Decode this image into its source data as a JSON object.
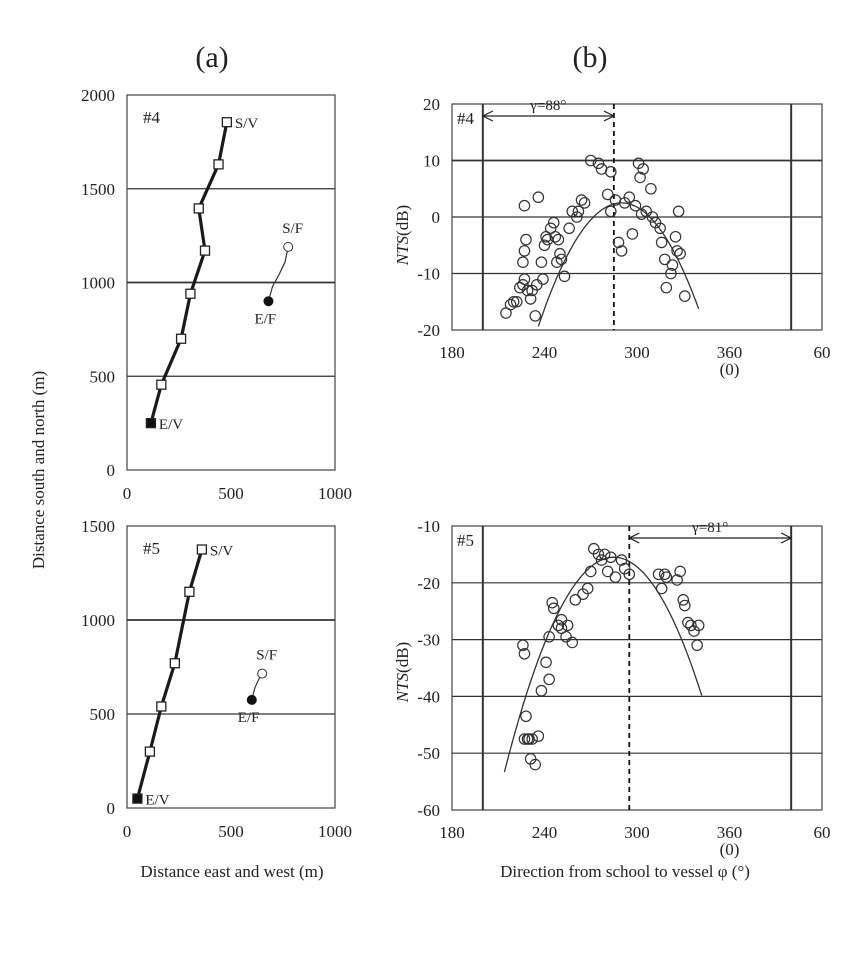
{
  "figure": {
    "panel_a_label": "(a)",
    "panel_b_label": "(b)",
    "a_ylabel": "Distance south and north (m)",
    "a_xlabel": "Distance east and west (m)",
    "b_ylabel_italic": "NTS",
    "b_ylabel_rest": "(dB)",
    "b_xlabel": "Direction from school to vessel φ (°)",
    "b_xtick_sub": "(0)"
  },
  "chart_data": [
    {
      "id": "a4",
      "type": "line",
      "title": "#4",
      "xlabel": "Distance east and west (m)",
      "ylabel": "Distance south and north (m)",
      "xlim": [
        0,
        1000
      ],
      "ylim": [
        0,
        2000
      ],
      "xticks": [
        "0",
        "500",
        "1000"
      ],
      "yticks": [
        "0",
        "500",
        "1000",
        "1500",
        "2000"
      ],
      "gridlines_y": [
        500,
        1000,
        1500
      ],
      "vessel_track": {
        "x": [
          115,
          165,
          260,
          305,
          375,
          345,
          440,
          480
        ],
        "y": [
          250,
          455,
          700,
          940,
          1170,
          1395,
          1630,
          1855
        ]
      },
      "fish_track": {
        "x": [
          680,
          700,
          730,
          760,
          775
        ],
        "y": [
          900,
          980,
          1040,
          1110,
          1190
        ]
      },
      "labels": {
        "start_vessel": "S/V",
        "end_vessel": "E/V",
        "start_fish": "S/F",
        "end_fish": "E/F"
      }
    },
    {
      "id": "a5",
      "type": "line",
      "title": "#5",
      "xlabel": "Distance east and west (m)",
      "ylabel": "Distance south and north (m)",
      "xlim": [
        0,
        1000
      ],
      "ylim": [
        0,
        1500
      ],
      "xticks": [
        "0",
        "500",
        "1000"
      ],
      "yticks": [
        "0",
        "500",
        "1000",
        "1500"
      ],
      "gridlines_y": [
        500,
        1000
      ],
      "vessel_track": {
        "x": [
          50,
          110,
          165,
          230,
          300,
          360
        ],
        "y": [
          50,
          300,
          540,
          770,
          1150,
          1375
        ]
      },
      "fish_track": {
        "x": [
          600,
          615,
          640,
          650
        ],
        "y": [
          575,
          640,
          700,
          715
        ]
      },
      "labels": {
        "start_vessel": "S/V",
        "end_vessel": "E/V",
        "start_fish": "S/F",
        "end_fish": "E/F"
      }
    },
    {
      "id": "b4",
      "type": "scatter",
      "title": "#4",
      "xlabel": "Direction from school to vessel φ (°)",
      "ylabel": "NTS(dB)",
      "xlim": [
        180,
        420
      ],
      "ylim": [
        -20,
        20
      ],
      "xticks": [
        "180",
        "240",
        "300",
        "360",
        "60"
      ],
      "xtick_values": [
        180,
        240,
        300,
        360,
        420
      ],
      "yticks": [
        "-20",
        "-10",
        "0",
        "10",
        "20"
      ],
      "gridlines_y": [
        10,
        0,
        -10
      ],
      "vertical_lines": [
        200,
        400
      ],
      "dashed_line": 285,
      "gamma_label": "γ=88°",
      "gamma_range": [
        200,
        285
      ],
      "curve": {
        "peak_x": 290,
        "peak_y": 2.5,
        "coef": -0.0075,
        "x_range": [
          208,
          340
        ]
      },
      "points": [
        [
          215,
          -17
        ],
        [
          218,
          -15.5
        ],
        [
          220,
          -15
        ],
        [
          222,
          -15
        ],
        [
          224,
          -12.5
        ],
        [
          226,
          -12
        ],
        [
          227,
          -11
        ],
        [
          226,
          -8
        ],
        [
          227,
          -6
        ],
        [
          228,
          -4
        ],
        [
          229,
          -13
        ],
        [
          231,
          -14.5
        ],
        [
          234,
          -17.5
        ],
        [
          232,
          -13
        ],
        [
          235,
          -12
        ],
        [
          238,
          -8
        ],
        [
          239,
          -11
        ],
        [
          240,
          -5
        ],
        [
          241,
          -3.5
        ],
        [
          242,
          -4
        ],
        [
          244,
          -2
        ],
        [
          246,
          -1
        ],
        [
          247,
          -3.5
        ],
        [
          248,
          -8
        ],
        [
          249,
          -4
        ],
        [
          250,
          -6.5
        ],
        [
          251,
          -7.5
        ],
        [
          253,
          -10.5
        ],
        [
          256,
          -2
        ],
        [
          258,
          1
        ],
        [
          261,
          0
        ],
        [
          262,
          1
        ],
        [
          264,
          3
        ],
        [
          266,
          2.5
        ],
        [
          270,
          10
        ],
        [
          275,
          9.5
        ],
        [
          277,
          8.5
        ],
        [
          281,
          4
        ],
        [
          283,
          1
        ],
        [
          283,
          8
        ],
        [
          286,
          3
        ],
        [
          288,
          -4.5
        ],
        [
          290,
          -6
        ],
        [
          292,
          2.5
        ],
        [
          295,
          3.5
        ],
        [
          297,
          -3
        ],
        [
          299,
          2
        ],
        [
          301,
          9.5
        ],
        [
          302,
          7
        ],
        [
          303,
          0.5
        ],
        [
          304,
          8.5
        ],
        [
          306,
          1
        ],
        [
          309,
          5
        ],
        [
          310,
          0
        ],
        [
          312,
          -1
        ],
        [
          315,
          -2
        ],
        [
          316,
          -4.5
        ],
        [
          318,
          -7.5
        ],
        [
          319,
          -12.5
        ],
        [
          322,
          -10
        ],
        [
          323,
          -8.5
        ],
        [
          325,
          -3.5
        ],
        [
          326,
          -6
        ],
        [
          327,
          1
        ],
        [
          328,
          -6.5
        ],
        [
          331,
          -14
        ],
        [
          227,
          2
        ],
        [
          236,
          3.5
        ]
      ]
    },
    {
      "id": "b5",
      "type": "scatter",
      "title": "#5",
      "xlabel": "Direction from school to vessel φ (°)",
      "ylabel": "NTS(dB)",
      "xlim": [
        180,
        420
      ],
      "ylim": [
        -60,
        -10
      ],
      "xticks": [
        "180",
        "240",
        "300",
        "360",
        "60"
      ],
      "xtick_values": [
        180,
        240,
        300,
        360,
        420
      ],
      "yticks": [
        "-60",
        "-50",
        "-40",
        "-30",
        "-20",
        "-10"
      ],
      "gridlines_y": [
        -20,
        -30,
        -40,
        -50
      ],
      "vertical_lines": [
        200,
        400
      ],
      "dashed_line": 295,
      "gamma_label": "γ=81°",
      "gamma_range": [
        295,
        400
      ],
      "curve": {
        "peak_x": 285,
        "peak_y": -15.5,
        "coef": -0.0075,
        "x_range": [
          214,
          342
        ]
      },
      "points": [
        [
          227,
          -47.5
        ],
        [
          228,
          -43.5
        ],
        [
          229,
          -47.5
        ],
        [
          230,
          -47.5
        ],
        [
          231,
          -51
        ],
        [
          232,
          -47.5
        ],
        [
          234,
          -52
        ],
        [
          236,
          -47
        ],
        [
          238,
          -39
        ],
        [
          243,
          -37
        ],
        [
          241,
          -34
        ],
        [
          243,
          -29.5
        ],
        [
          245,
          -23.5
        ],
        [
          246,
          -24.5
        ],
        [
          249,
          -27.5
        ],
        [
          251,
          -26.5
        ],
        [
          251,
          -28
        ],
        [
          254,
          -29.5
        ],
        [
          255,
          -27.5
        ],
        [
          258,
          -30.5
        ],
        [
          260,
          -23
        ],
        [
          265,
          -22
        ],
        [
          268,
          -21
        ],
        [
          270,
          -18
        ],
        [
          272,
          -14
        ],
        [
          275,
          -15
        ],
        [
          277,
          -16
        ],
        [
          279,
          -15
        ],
        [
          281,
          -18
        ],
        [
          283,
          -15.5
        ],
        [
          286,
          -19
        ],
        [
          290,
          -16
        ],
        [
          292,
          -17.5
        ],
        [
          295,
          -18.5
        ],
        [
          314,
          -18.5
        ],
        [
          316,
          -21
        ],
        [
          318,
          -18.5
        ],
        [
          319,
          -19
        ],
        [
          326,
          -19.5
        ],
        [
          328,
          -18
        ],
        [
          330,
          -23
        ],
        [
          331,
          -24
        ],
        [
          333,
          -27
        ],
        [
          335,
          -27.5
        ],
        [
          337,
          -28.5
        ],
        [
          339,
          -31
        ],
        [
          340,
          -27.5
        ],
        [
          226,
          -31
        ],
        [
          227,
          -32.5
        ]
      ]
    }
  ]
}
